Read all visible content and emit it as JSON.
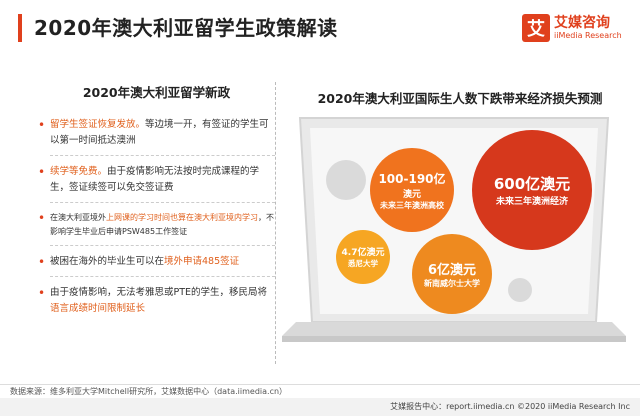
{
  "title": "2020年澳大利亚留学生政策解读",
  "logo": {
    "mark": "艾",
    "name_cn": "艾媒咨询",
    "name_en": "iiMedia Research"
  },
  "left": {
    "title": "2020年澳大利亚留学新政",
    "items": [
      {
        "highlight": "留学生签证恢复发放。",
        "text": "等边境一开，有签证的学生可以第一时间抵达澳洲"
      },
      {
        "highlight": "续学等免费。",
        "text": "由于疫情影响无法按时完成课程的学生，签证续签可以免交签证费"
      },
      {
        "prefix": "在澳大利亚境外",
        "highlight": "上网课的学习时间也算在澳大利亚境内学习",
        "text": "，不影响学生毕业后申请PSW485工作签证"
      },
      {
        "prefix": "被困在海外的毕业生可以在",
        "highlight": "境外申请485签证",
        "text": ""
      },
      {
        "prefix": "由于疫情影响，无法考雅思或PTE的学生，移民局将",
        "highlight": "语言成绩时间限制延长",
        "text": ""
      }
    ]
  },
  "right": {
    "title": "2020年澳大利亚国际生人数下跌带来经济损失预测",
    "bubbles": [
      {
        "value": "100-190亿",
        "unit": "澳元",
        "desc": "未来三年澳洲高校",
        "color": "#f0731e"
      },
      {
        "value": "600亿澳元",
        "unit": "",
        "desc": "未来三年澳洲经济",
        "color": "#d6381c"
      },
      {
        "value": "4.7亿澳元",
        "unit": "",
        "desc": "悉尼大学",
        "color": "#f6a623"
      },
      {
        "value": "6亿澳元",
        "unit": "",
        "desc": "新南威尔士大学",
        "color": "#ee8a1f"
      }
    ]
  },
  "source": "数据来源：维多利亚大学Mitchell研究所，艾媒数据中心（data.iimedia.cn）",
  "footer": "艾媒报告中心：report.iimedia.cn    ©2020  iiMedia Research  Inc"
}
